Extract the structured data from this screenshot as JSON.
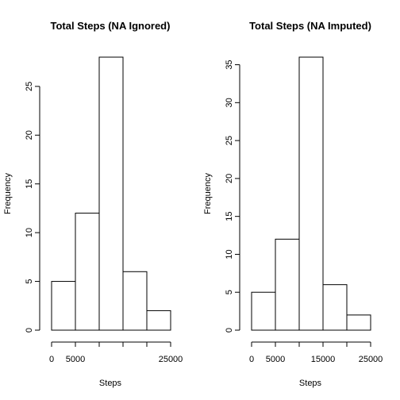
{
  "chart_data": [
    {
      "type": "bar",
      "title": "Total Steps (NA Ignored)",
      "xlabel": "Steps",
      "ylabel": "Frequency",
      "bins": [
        [
          0,
          5000
        ],
        [
          5000,
          10000
        ],
        [
          10000,
          15000
        ],
        [
          15000,
          20000
        ],
        [
          20000,
          25000
        ]
      ],
      "values": [
        5,
        12,
        28,
        6,
        2
      ],
      "xlim": [
        0,
        25000
      ],
      "ylim": [
        0,
        28
      ],
      "x_ticks": [
        0,
        5000,
        10000,
        15000,
        20000,
        25000
      ],
      "x_tick_labels": [
        "0",
        "5000",
        "",
        "",
        "",
        "25000"
      ],
      "y_ticks": [
        0,
        5,
        10,
        15,
        20,
        25
      ],
      "y_tick_labels": [
        "0",
        "5",
        "10",
        "15",
        "20",
        "25"
      ],
      "grid": false,
      "legend": "none"
    },
    {
      "type": "bar",
      "title": "Total Steps (NA Imputed)",
      "xlabel": "Steps",
      "ylabel": "Frequency",
      "bins": [
        [
          0,
          5000
        ],
        [
          5000,
          10000
        ],
        [
          10000,
          15000
        ],
        [
          15000,
          20000
        ],
        [
          20000,
          25000
        ]
      ],
      "values": [
        5,
        12,
        36,
        6,
        2
      ],
      "xlim": [
        0,
        25000
      ],
      "ylim": [
        0,
        36
      ],
      "x_ticks": [
        0,
        5000,
        10000,
        15000,
        20000,
        25000
      ],
      "x_tick_labels": [
        "0",
        "5000",
        "",
        "15000",
        "",
        "25000"
      ],
      "y_ticks": [
        0,
        5,
        10,
        15,
        20,
        25,
        30,
        35
      ],
      "y_tick_labels": [
        "0",
        "5",
        "10",
        "15",
        "20",
        "25",
        "30",
        "35"
      ],
      "grid": false,
      "legend": "none"
    }
  ]
}
